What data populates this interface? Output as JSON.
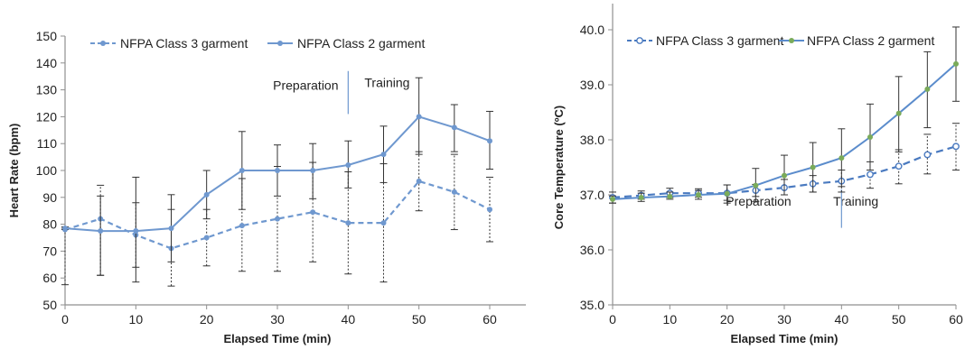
{
  "chart_data": [
    {
      "type": "line",
      "xlabel": "Elapsed Time (min)",
      "ylabel": "Heart Rate (bpm)",
      "xlim": [
        0,
        60
      ],
      "ylim": [
        50,
        150
      ],
      "x_ticks": [
        "0",
        "10",
        "20",
        "30",
        "40",
        "50",
        "60"
      ],
      "y_ticks": [
        "50",
        "60",
        "70",
        "80",
        "90",
        "100",
        "110",
        "120",
        "130",
        "140",
        "150"
      ],
      "grid": false,
      "legend_position": "top",
      "annotations": [
        {
          "text": "Preparation",
          "x": 34,
          "y": 130
        },
        {
          "text": "Training",
          "x": 45.5,
          "y": 131
        }
      ],
      "divider": {
        "x": 40,
        "y_from": 121,
        "y_to": 137
      },
      "x": [
        0,
        5,
        10,
        15,
        20,
        25,
        30,
        35,
        40,
        45,
        50,
        55,
        60
      ],
      "series": [
        {
          "name": "NFPA Class 3 garment",
          "style": "dashed",
          "color": "#6f98cf",
          "values": [
            78,
            82,
            76,
            71,
            75,
            79.5,
            82,
            84.5,
            80.5,
            80.5,
            96,
            92,
            85.5
          ],
          "err_low": [
            57.5,
            61,
            64,
            57,
            64.5,
            62.5,
            62.5,
            66,
            61.5,
            58.5,
            85,
            78,
            73.5
          ],
          "err_high": [
            78.5,
            94.5,
            88,
            85.5,
            85.5,
            97,
            101.5,
            103,
            99.5,
            102.5,
            107,
            106,
            97.5
          ]
        },
        {
          "name": "NFPA Class 2 garment",
          "style": "solid",
          "color": "#6f98cf",
          "values": [
            78.5,
            77.5,
            77.5,
            78.5,
            91,
            100,
            100,
            100,
            102,
            106,
            120,
            116,
            111
          ],
          "err_low": [
            78,
            61,
            58.5,
            66,
            82,
            85.5,
            90.5,
            89.5,
            93.5,
            95.5,
            106,
            107,
            100.5
          ],
          "err_high": [
            79,
            90.5,
            97.5,
            91,
            100,
            114.5,
            109.5,
            110,
            111,
            116.5,
            134.5,
            124.5,
            122
          ]
        }
      ]
    },
    {
      "type": "line",
      "xlabel": "Elapsed Time (min)",
      "ylabel": "Core Temperature (ºC)",
      "xlim": [
        0,
        60
      ],
      "ylim": [
        35.0,
        40.0
      ],
      "x_ticks": [
        "0",
        "10",
        "20",
        "30",
        "40",
        "50",
        "60"
      ],
      "y_ticks": [
        "35.0",
        "36.0",
        "37.0",
        "38.0",
        "39.0",
        "40.0"
      ],
      "grid": false,
      "legend_position": "top",
      "annotations": [
        {
          "text": "Preparation",
          "x": 25.5,
          "y": 36.8
        },
        {
          "text": "Training",
          "x": 42.5,
          "y": 36.8
        }
      ],
      "divider": {
        "x": 40,
        "y_from": 36.4,
        "y_to": 37.1
      },
      "x": [
        0,
        5,
        10,
        15,
        20,
        25,
        30,
        35,
        40,
        45,
        50,
        55,
        60
      ],
      "series": [
        {
          "name": "NFPA Class 3 garment",
          "style": "dashed",
          "color": "#4a7ac0",
          "values": [
            36.95,
            36.99,
            37.03,
            37.03,
            37.03,
            37.08,
            37.13,
            37.2,
            37.25,
            37.37,
            37.52,
            37.73,
            37.88
          ],
          "err_low": [
            36.85,
            36.92,
            36.95,
            36.96,
            36.9,
            36.97,
            37.0,
            37.05,
            37.05,
            37.12,
            37.2,
            37.38,
            37.45
          ],
          "err_high": [
            37.05,
            37.07,
            37.12,
            37.11,
            37.18,
            37.19,
            37.28,
            37.35,
            37.45,
            37.6,
            37.82,
            38.1,
            38.3
          ]
        },
        {
          "name": "NFPA Class 2 garment",
          "style": "solid",
          "color": "#5b8ccc",
          "marker_color": "#7aab5a",
          "values": [
            36.92,
            36.95,
            36.97,
            37.0,
            37.02,
            37.17,
            37.35,
            37.5,
            37.67,
            38.05,
            38.48,
            38.92,
            39.38
          ],
          "err_low": [
            36.85,
            36.88,
            36.92,
            36.92,
            36.85,
            36.88,
            37.0,
            37.05,
            37.15,
            37.45,
            37.78,
            38.22,
            38.7
          ],
          "err_high": [
            36.98,
            37.03,
            37.05,
            37.08,
            37.18,
            37.48,
            37.72,
            37.95,
            38.2,
            38.65,
            39.15,
            39.6,
            40.05
          ]
        }
      ]
    }
  ]
}
